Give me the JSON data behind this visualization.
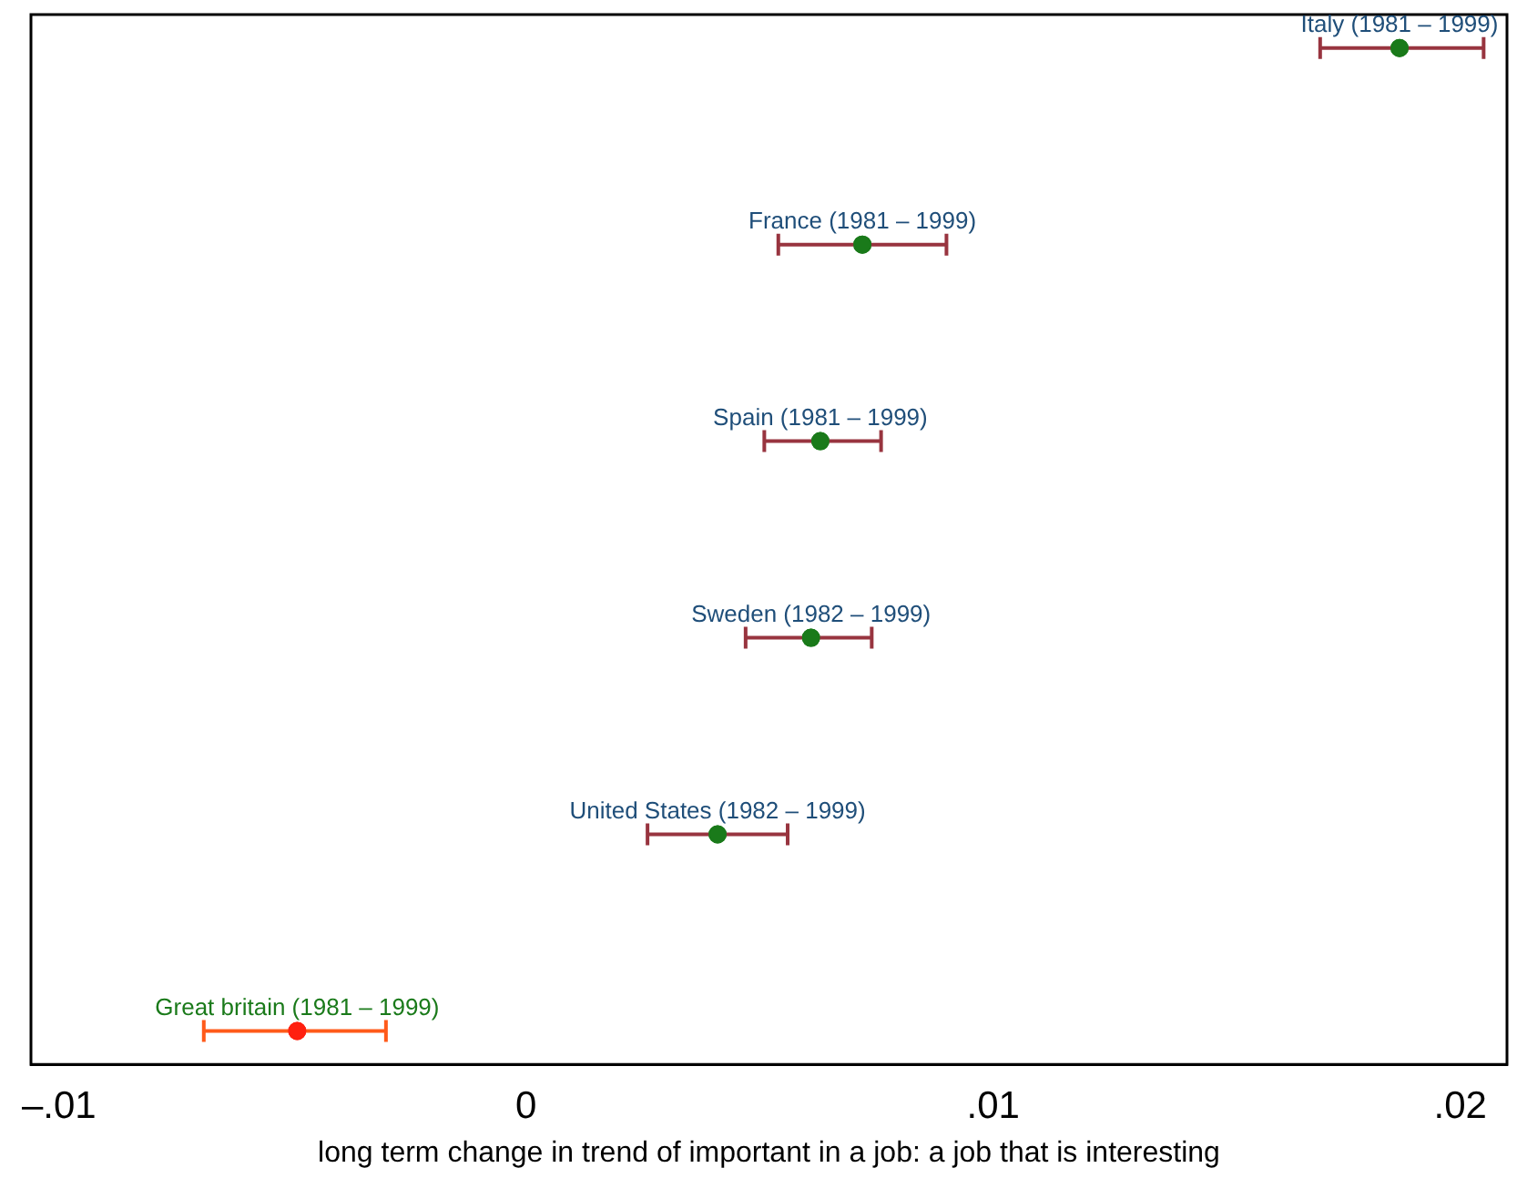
{
  "chart_data": {
    "type": "scatter",
    "orientation": "horizontal",
    "xlabel": "long term change in trend of important in a job: a job that is interesting",
    "categories": [
      "Italy (1981 – 1999)",
      "France (1981 – 1999)",
      "Spain (1981 – 1999)",
      "Sweden (1982 – 1999)",
      "United States (1982 – 1999)",
      "Great britain (1981 – 1999)"
    ],
    "series": [
      {
        "color": "#1a7a1a",
        "values": [
          0.0187,
          0.0072,
          0.0063,
          0.0061,
          0.0041,
          null
        ],
        "errors": [
          [
            0.017,
            0.0205
          ],
          [
            0.0054,
            0.009
          ],
          [
            0.0051,
            0.0076
          ],
          [
            0.0047,
            0.0074
          ],
          [
            0.0026,
            0.0056
          ],
          null
        ]
      },
      {
        "color": "#ff2010",
        "values": [
          null,
          null,
          null,
          null,
          null,
          -0.0049
        ],
        "errors": [
          null,
          null,
          null,
          null,
          null,
          [
            -0.0069,
            -0.003
          ]
        ]
      }
    ],
    "xlim": [
      -0.0106,
      0.021
    ],
    "xticks": [
      {
        "value": -0.01,
        "label": "–.01"
      },
      0,
      {
        "value": 0.01,
        "label": ".01"
      },
      {
        "value": 0.02,
        "label": ".02"
      }
    ],
    "tick_labels": "x",
    "grid": false,
    "legend": false,
    "marker": "circle"
  }
}
